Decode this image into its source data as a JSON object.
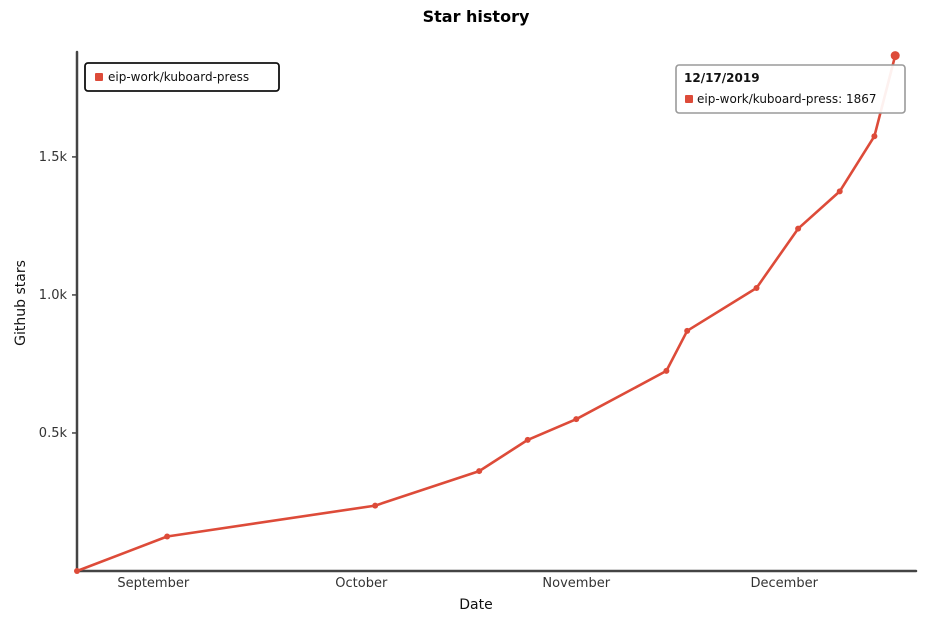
{
  "chart_data": {
    "type": "line",
    "title": "Star history",
    "xlabel": "Date",
    "ylabel": "Github stars",
    "x_ticks": [
      "September",
      "October",
      "November",
      "December"
    ],
    "x_tick_dates": [
      "2019-09-01",
      "2019-10-01",
      "2019-11-01",
      "2019-12-01"
    ],
    "y_ticks": [
      {
        "value": 500,
        "label": "0.5k"
      },
      {
        "value": 1000,
        "label": "1.0k"
      },
      {
        "value": 1500,
        "label": "1.5k"
      }
    ],
    "xlim": [
      "2019-08-21",
      "2019-12-20"
    ],
    "ylim": [
      0,
      1880
    ],
    "legend_position": "top-left",
    "series": [
      {
        "name": "eip-work/kuboard-press",
        "color": "#dd4b39",
        "points": [
          {
            "x": "2019-08-21",
            "y": 0
          },
          {
            "x": "2019-09-03",
            "y": 125
          },
          {
            "x": "2019-10-03",
            "y": 237
          },
          {
            "x": "2019-10-18",
            "y": 362
          },
          {
            "x": "2019-10-25",
            "y": 475
          },
          {
            "x": "2019-11-01",
            "y": 550
          },
          {
            "x": "2019-11-14",
            "y": 725
          },
          {
            "x": "2019-11-17",
            "y": 870
          },
          {
            "x": "2019-11-27",
            "y": 1025
          },
          {
            "x": "2019-12-03",
            "y": 1240
          },
          {
            "x": "2019-12-09",
            "y": 1375
          },
          {
            "x": "2019-12-14",
            "y": 1575
          },
          {
            "x": "2019-12-17",
            "y": 1867
          }
        ]
      }
    ],
    "tooltip": {
      "date": "12/17/2019",
      "series": "eip-work/kuboard-press",
      "value": "1867",
      "text": "eip-work/kuboard-press: 1867"
    }
  }
}
